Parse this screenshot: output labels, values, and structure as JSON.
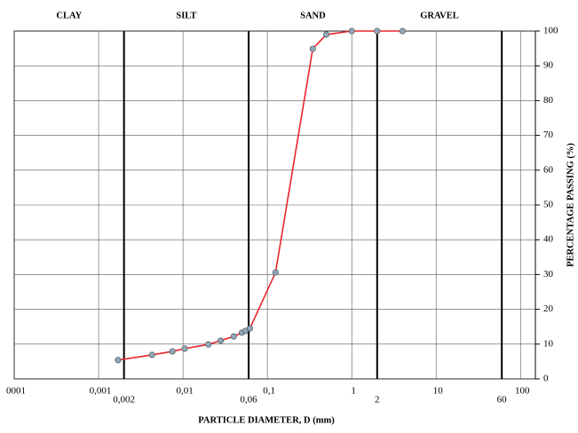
{
  "chart_data": {
    "type": "line",
    "xlabel": "PARTICLE DIAMETER, D (mm)",
    "ylabel": "PERCENTAGE PASSING (%)",
    "xscale": "log",
    "xlim": [
      0.0001,
      150
    ],
    "ylim": [
      0,
      100
    ],
    "xticks": [
      {
        "value": 0.0001,
        "label": "0001"
      },
      {
        "value": 0.001,
        "label": "0,001"
      },
      {
        "value": 0.01,
        "label": "0,01"
      },
      {
        "value": 0.1,
        "label": "0,1"
      },
      1,
      10,
      100
    ],
    "yticks": [
      0,
      10,
      20,
      30,
      40,
      50,
      60,
      70,
      80,
      90,
      100
    ],
    "boundaries": [
      {
        "value": 0.002,
        "label": "0,002"
      },
      {
        "value": 0.06,
        "label": "0,06"
      },
      2,
      60
    ],
    "zones": [
      "CLAY",
      "SILT",
      "SAND",
      "GRAVEL"
    ],
    "grid": true,
    "color": "#e8262a",
    "marker_color": "#8fa8b8",
    "x": [
      0.0017,
      0.0043,
      0.0075,
      0.0105,
      0.02,
      0.028,
      0.04,
      0.05,
      0.055,
      0.062,
      0.125,
      0.345,
      0.5,
      1,
      2,
      4
    ],
    "values": [
      5.4,
      6.9,
      7.9,
      8.7,
      9.9,
      11.0,
      12.2,
      13.3,
      13.8,
      14.5,
      30.6,
      94.9,
      99.0,
      100,
      100,
      100
    ]
  }
}
